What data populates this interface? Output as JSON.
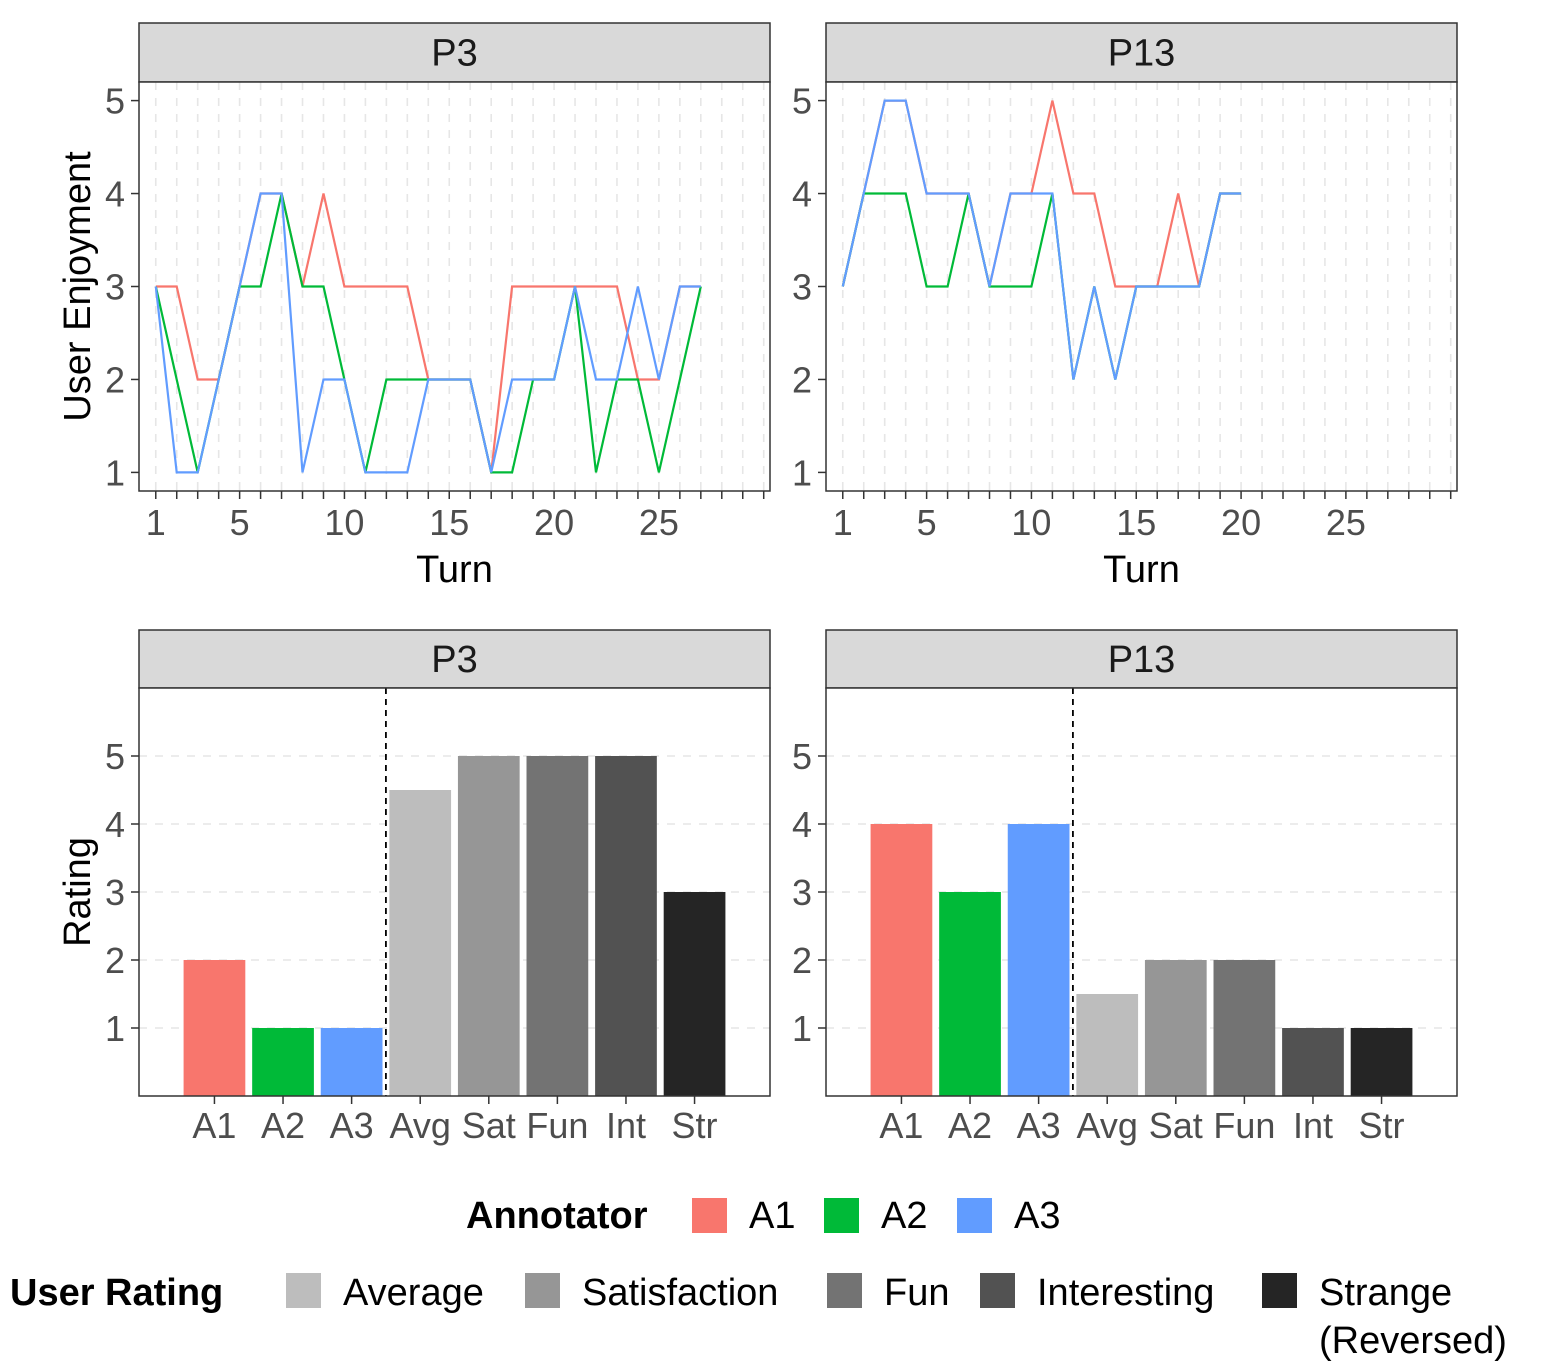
{
  "colors": {
    "A1": "#F8766D",
    "A2": "#00BA38",
    "A3": "#619CFF",
    "Avg": "#BDBDBD",
    "Sat": "#969696",
    "Fun": "#737373",
    "Int": "#525252",
    "Str": "#252525"
  },
  "legend": {
    "annotator_title": "Annotator",
    "annotator_items": [
      {
        "key": "A1",
        "label": "A1"
      },
      {
        "key": "A2",
        "label": "A2"
      },
      {
        "key": "A3",
        "label": "A3"
      }
    ],
    "rating_title": "User Rating",
    "rating_items": [
      {
        "key": "Avg",
        "label": "Average"
      },
      {
        "key": "Sat",
        "label": "Satisfaction"
      },
      {
        "key": "Fun",
        "label": "Fun"
      },
      {
        "key": "Int",
        "label": "Interesting"
      },
      {
        "key": "Str",
        "label": "Strange",
        "label2": "(Reversed)"
      }
    ]
  },
  "chart_data": [
    {
      "type": "line",
      "panel": "P3",
      "xlabel": "Turn",
      "ylabel": "User Enjoyment",
      "xticks": [
        1,
        5,
        10,
        15,
        20,
        25
      ],
      "yticks": [
        1,
        2,
        3,
        4,
        5
      ],
      "xlim": [
        0.2,
        30.3
      ],
      "ylim": [
        0.8,
        5.2
      ],
      "grid": "vertical dashed",
      "series": [
        {
          "name": "A1",
          "x": [
            1,
            2,
            3,
            4,
            5,
            6,
            7,
            8,
            9,
            10,
            11,
            12,
            13,
            14,
            15,
            16,
            17,
            18,
            19,
            20,
            21,
            22,
            23,
            24,
            25,
            26,
            27
          ],
          "y": [
            3,
            3,
            2,
            2,
            3,
            4,
            4,
            3,
            4,
            3,
            3,
            3,
            3,
            2,
            2,
            2,
            1,
            3,
            3,
            3,
            3,
            3,
            3,
            2,
            2,
            3,
            3
          ]
        },
        {
          "name": "A2",
          "x": [
            1,
            2,
            3,
            4,
            5,
            6,
            7,
            8,
            9,
            10,
            11,
            12,
            13,
            14,
            15,
            16,
            17,
            18,
            19,
            20,
            21,
            22,
            23,
            24,
            25,
            26,
            27
          ],
          "y": [
            3,
            2,
            1,
            2,
            3,
            3,
            4,
            3,
            3,
            2,
            1,
            2,
            2,
            2,
            2,
            2,
            1,
            1,
            2,
            2,
            3,
            1,
            2,
            2,
            1,
            2,
            3
          ]
        },
        {
          "name": "A3",
          "x": [
            1,
            2,
            3,
            4,
            5,
            6,
            7,
            8,
            9,
            10,
            11,
            12,
            13,
            14,
            15,
            16,
            17,
            18,
            19,
            20,
            21,
            22,
            23,
            24,
            25,
            26,
            27
          ],
          "y": [
            3,
            1,
            1,
            2,
            3,
            4,
            4,
            1,
            2,
            2,
            1,
            1,
            1,
            2,
            2,
            2,
            1,
            2,
            2,
            2,
            3,
            2,
            2,
            3,
            2,
            3,
            3
          ]
        }
      ]
    },
    {
      "type": "line",
      "panel": "P13",
      "xlabel": "Turn",
      "ylabel": "",
      "xticks": [
        1,
        5,
        10,
        15,
        20,
        25
      ],
      "yticks": [
        1,
        2,
        3,
        4,
        5
      ],
      "xlim": [
        0.2,
        30.3
      ],
      "ylim": [
        0.8,
        5.2
      ],
      "grid": "vertical dashed",
      "series": [
        {
          "name": "A1",
          "x": [
            1,
            2,
            3,
            4,
            5,
            6,
            7,
            8,
            9,
            10,
            11,
            12,
            13,
            14,
            15,
            16,
            17,
            18,
            19,
            20
          ],
          "y": [
            3,
            4,
            5,
            5,
            4,
            4,
            4,
            3,
            4,
            4,
            5,
            4,
            4,
            3,
            3,
            3,
            4,
            3,
            4,
            4
          ]
        },
        {
          "name": "A2",
          "x": [
            1,
            2,
            3,
            4,
            5,
            6,
            7,
            8,
            9,
            10,
            11,
            12,
            13,
            14,
            15,
            16,
            17,
            18,
            19,
            20
          ],
          "y": [
            3,
            4,
            4,
            4,
            3,
            3,
            4,
            3,
            3,
            3,
            4,
            2,
            3,
            2,
            3,
            3,
            3,
            3,
            4,
            4
          ]
        },
        {
          "name": "A3",
          "x": [
            1,
            2,
            3,
            4,
            5,
            6,
            7,
            8,
            9,
            10,
            11,
            12,
            13,
            14,
            15,
            16,
            17,
            18,
            19,
            20
          ],
          "y": [
            3,
            4,
            5,
            5,
            4,
            4,
            4,
            3,
            4,
            4,
            4,
            2,
            3,
            2,
            3,
            3,
            3,
            3,
            4,
            4
          ]
        }
      ]
    },
    {
      "type": "bar",
      "panel": "P3",
      "xlabel": "",
      "ylabel": "Rating",
      "categories": [
        "A1",
        "A2",
        "A3",
        "Avg",
        "Sat",
        "Fun",
        "Int",
        "Str"
      ],
      "values": [
        2,
        1,
        1,
        4.5,
        5,
        5,
        5,
        3
      ],
      "yticks": [
        1,
        2,
        3,
        4,
        5
      ],
      "ylim": [
        0,
        6
      ],
      "separator_after": "A3",
      "grid": "horizontal dashed"
    },
    {
      "type": "bar",
      "panel": "P13",
      "xlabel": "",
      "ylabel": "",
      "categories": [
        "A1",
        "A2",
        "A3",
        "Avg",
        "Sat",
        "Fun",
        "Int",
        "Str"
      ],
      "values": [
        4,
        3,
        4,
        1.5,
        2,
        2,
        1,
        1
      ],
      "yticks": [
        1,
        2,
        3,
        4,
        5
      ],
      "ylim": [
        0,
        6
      ],
      "separator_after": "A3",
      "grid": "horizontal dashed"
    }
  ]
}
